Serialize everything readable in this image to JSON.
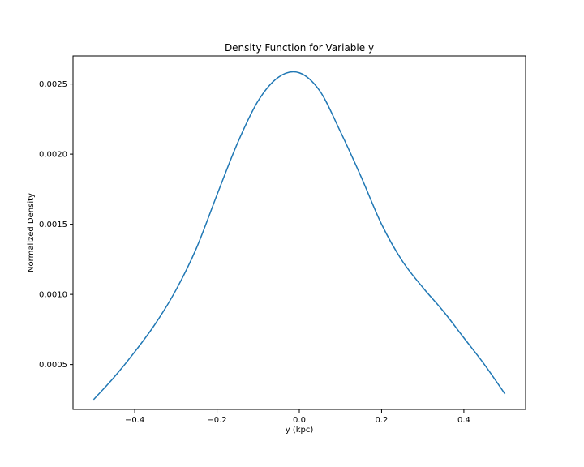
{
  "chart_data": {
    "type": "line",
    "title": "Density Function for Variable y",
    "xlabel": "y (kpc)",
    "ylabel": "Normalized Density",
    "xlim": [
      -0.55,
      0.55
    ],
    "ylim": [
      0.00018,
      0.0027
    ],
    "grid": false,
    "xticks": [
      -0.4,
      -0.2,
      0.0,
      0.2,
      0.4
    ],
    "xtick_labels": [
      "−0.4",
      "−0.2",
      "0.0",
      "0.2",
      "0.4"
    ],
    "yticks": [
      0.0005,
      0.001,
      0.0015,
      0.002,
      0.0025
    ],
    "ytick_labels": [
      "0.0005",
      "0.0010",
      "0.0015",
      "0.0020",
      "0.0025"
    ],
    "series": [
      {
        "color": "#1f77b4",
        "x": [
          -0.5,
          -0.45,
          -0.4,
          -0.35,
          -0.3,
          -0.25,
          -0.2,
          -0.15,
          -0.1,
          -0.05,
          0.0,
          0.05,
          0.1,
          0.15,
          0.2,
          0.25,
          0.3,
          0.35,
          0.4,
          0.45,
          0.5
        ],
        "y": [
          0.00025,
          0.00041,
          0.00059,
          0.00079,
          0.00103,
          0.00133,
          0.00171,
          0.00208,
          0.00238,
          0.00255,
          0.00258,
          0.00245,
          0.00216,
          0.00184,
          0.0015,
          0.00124,
          0.00105,
          0.00088,
          0.00069,
          0.0005,
          0.00029
        ]
      }
    ]
  }
}
